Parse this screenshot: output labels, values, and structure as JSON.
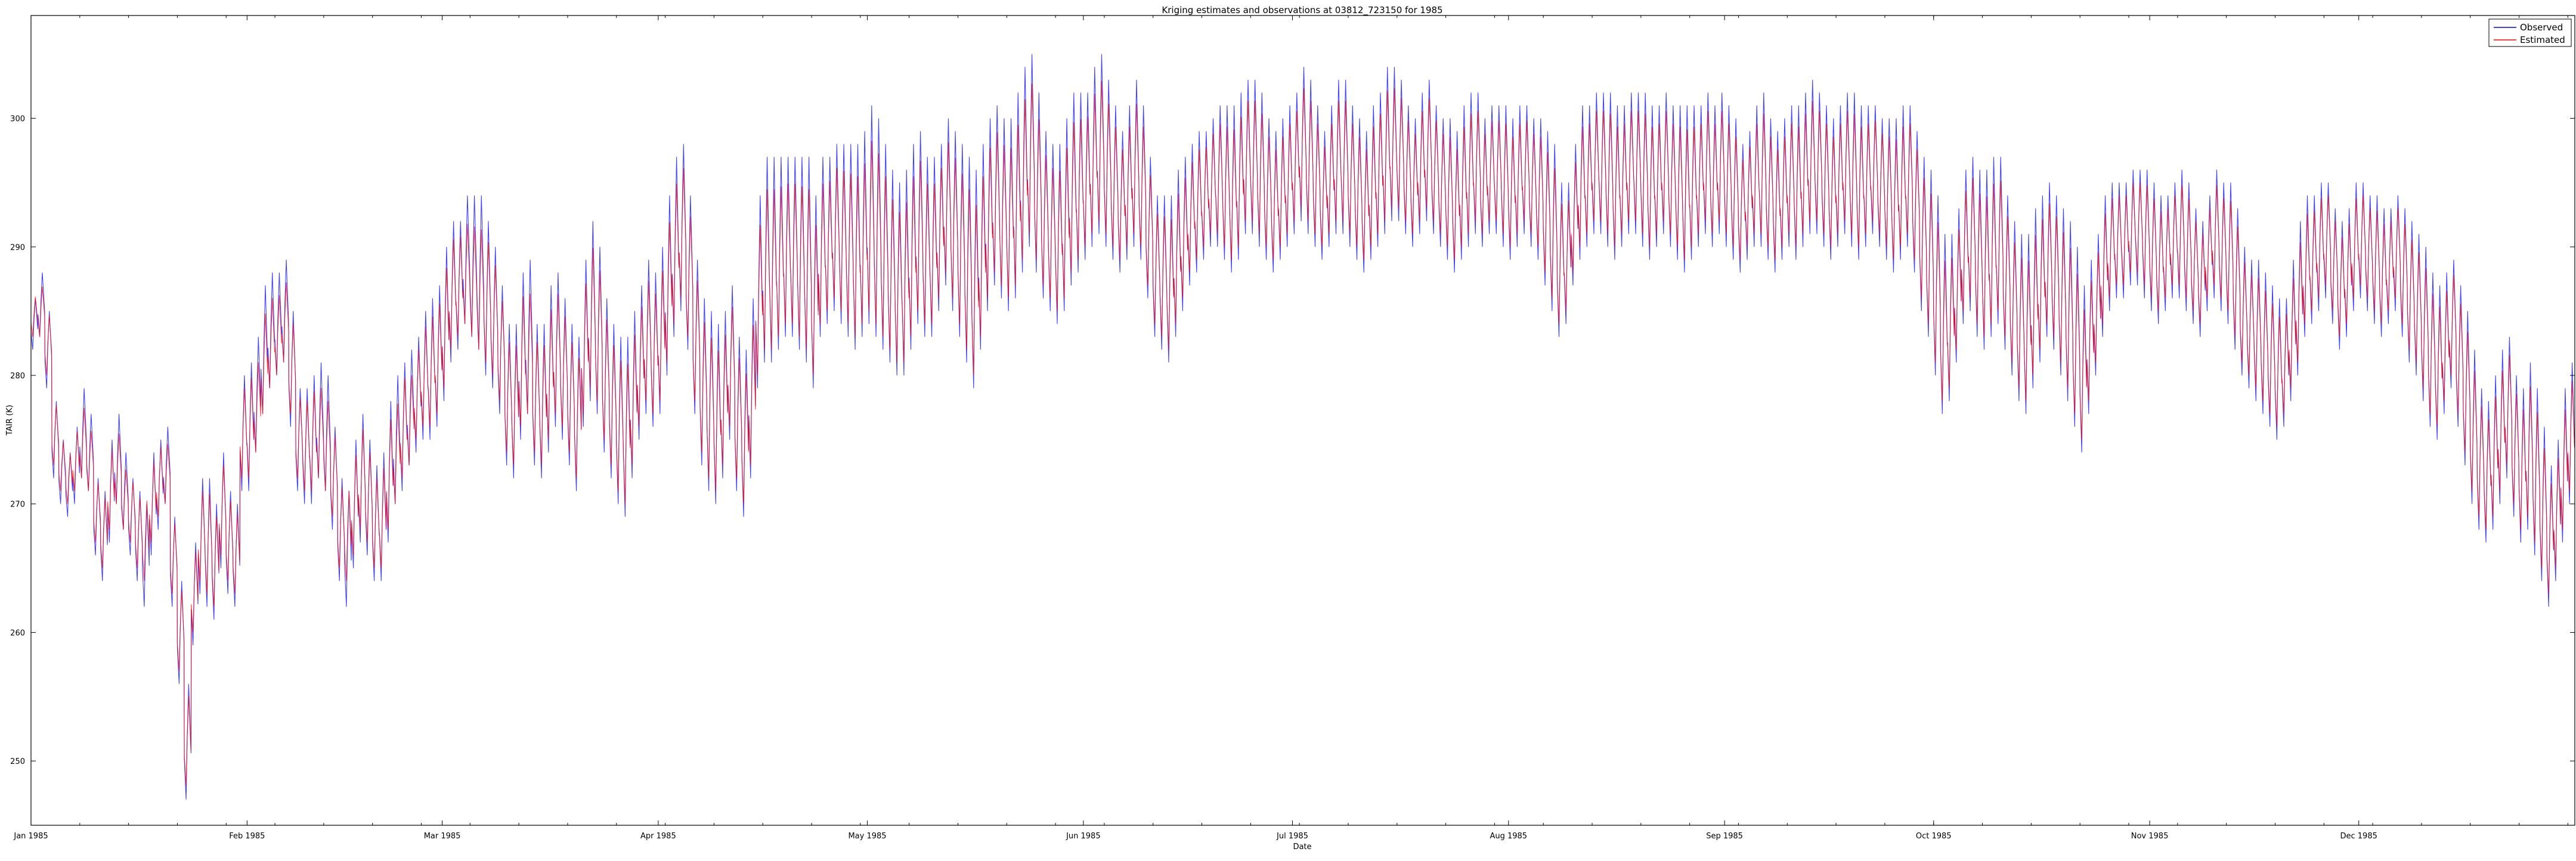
{
  "chart_data": {
    "type": "line",
    "title": "Kriging estimates and observations at 03812_723150 for 1985",
    "xlabel": "Date",
    "ylabel": "TAIR (K)",
    "x_domain": [
      "1985-01-01",
      "1986-01-01"
    ],
    "ylim": [
      245,
      308
    ],
    "x_ticks": [
      {
        "date": "1985-01-01",
        "label": "Jan 1985"
      },
      {
        "date": "1985-02-01",
        "label": "Feb 1985"
      },
      {
        "date": "1985-03-01",
        "label": "Mar 1985"
      },
      {
        "date": "1985-04-01",
        "label": "Apr 1985"
      },
      {
        "date": "1985-05-01",
        "label": "May 1985"
      },
      {
        "date": "1985-06-01",
        "label": "Jun 1985"
      },
      {
        "date": "1985-07-01",
        "label": "Jul 1985"
      },
      {
        "date": "1985-08-01",
        "label": "Aug 1985"
      },
      {
        "date": "1985-09-01",
        "label": "Sep 1985"
      },
      {
        "date": "1985-10-01",
        "label": "Oct 1985"
      },
      {
        "date": "1985-11-01",
        "label": "Nov 1985"
      },
      {
        "date": "1985-12-01",
        "label": "Dec 1985"
      }
    ],
    "y_ticks": [
      250,
      260,
      270,
      280,
      290,
      300
    ],
    "grid": false,
    "legend_position": "top-right",
    "series": [
      {
        "name": "Observed",
        "color": "#0000ff",
        "values_desc": "daily min/max",
        "daily_min": [
          282,
          283,
          279,
          272,
          270,
          269,
          270,
          272,
          271,
          266,
          264,
          267,
          270,
          268,
          266,
          264,
          262,
          266,
          268,
          270,
          262,
          256,
          247,
          259,
          263,
          262,
          261,
          265,
          263,
          262,
          271,
          271,
          274,
          277,
          279,
          280,
          281,
          276,
          271,
          270,
          270,
          272,
          271,
          268,
          264,
          262,
          265,
          267,
          266,
          264,
          264,
          267,
          270,
          271,
          273,
          274,
          275,
          275,
          276,
          278,
          281,
          282,
          284,
          283,
          282,
          280,
          279,
          277,
          273,
          272,
          275,
          277,
          273,
          272,
          274,
          276,
          275,
          273,
          271,
          276,
          278,
          277,
          274,
          272,
          270,
          269,
          272,
          275,
          277,
          276,
          277,
          280,
          283,
          285,
          282,
          277,
          273,
          271,
          270,
          272,
          275,
          271,
          269,
          272,
          279,
          281,
          281,
          282,
          283,
          283,
          282,
          281,
          279,
          283,
          284,
          285,
          284,
          283,
          282,
          283,
          284,
          283,
          282,
          281,
          280,
          280,
          282,
          284,
          283,
          283,
          285,
          287,
          285,
          283,
          281,
          279,
          282,
          285,
          287,
          286,
          285,
          286,
          288,
          290,
          288,
          286,
          285,
          284,
          285,
          287,
          288,
          289,
          290,
          291,
          290,
          289,
          288,
          289,
          290,
          289,
          286,
          283,
          282,
          281,
          283,
          285,
          287,
          288,
          289,
          290,
          290,
          289,
          288,
          289,
          291,
          291,
          290,
          289,
          288,
          289,
          290,
          291,
          292,
          291,
          290,
          289,
          290,
          291,
          291,
          290,
          289,
          288,
          289,
          290,
          291,
          292,
          292,
          291,
          290,
          291,
          292,
          291,
          290,
          289,
          288,
          289,
          290,
          291,
          290,
          291,
          291,
          290,
          289,
          290,
          291,
          290,
          289,
          287,
          285,
          283,
          284,
          287,
          289,
          290,
          291,
          291,
          290,
          289,
          290,
          291,
          291,
          290,
          289,
          290,
          291,
          290,
          289,
          288,
          289,
          290,
          291,
          290,
          291,
          290,
          289,
          288,
          289,
          290,
          290,
          289,
          288,
          289,
          290,
          289,
          290,
          291,
          291,
          290,
          289,
          290,
          291,
          290,
          289,
          290,
          291,
          290,
          289,
          288,
          289,
          290,
          288,
          285,
          283,
          280,
          277,
          278,
          281,
          284,
          285,
          283,
          282,
          283,
          284,
          282,
          280,
          278,
          277,
          279,
          281,
          283,
          282,
          280,
          278,
          276,
          274,
          277,
          280,
          283,
          285,
          286,
          286,
          287,
          287,
          286,
          285,
          284,
          285,
          286,
          286,
          285,
          284,
          283,
          285,
          286,
          285,
          284,
          282,
          280,
          279,
          278,
          277,
          276,
          275,
          276,
          278,
          280,
          283,
          284,
          285,
          286,
          284,
          282,
          283,
          285,
          286,
          285,
          284,
          283,
          284,
          285,
          283,
          281,
          280,
          278,
          276,
          275,
          277,
          279,
          276,
          273,
          270,
          268,
          267,
          268,
          270,
          272,
          269,
          267,
          268,
          266,
          264,
          262,
          264,
          267,
          270,
          272,
          271
        ]
      },
      {
        "name": "Estimated",
        "color": "#ff0000",
        "values_desc": "daily min/max",
        "daily_min": [
          283,
          283,
          280,
          273,
          271,
          270,
          271,
          272,
          271,
          267,
          265,
          268,
          270,
          268,
          267,
          265,
          264,
          267,
          269,
          270,
          263,
          257,
          248,
          260,
          264,
          263,
          262,
          266,
          264,
          263,
          272,
          272,
          274,
          277,
          279,
          280,
          281,
          277,
          272,
          271,
          271,
          272,
          271,
          269,
          265,
          264,
          266,
          268,
          267,
          265,
          265,
          268,
          270,
          272,
          273,
          275,
          276,
          276,
          277,
          279,
          282,
          283,
          284,
          283,
          282,
          281,
          280,
          278,
          274,
          273,
          276,
          277,
          274,
          273,
          275,
          277,
          276,
          274,
          272,
          277,
          279,
          278,
          275,
          273,
          271,
          270,
          273,
          276,
          278,
          277,
          278,
          281,
          284,
          286,
          283,
          278,
          274,
          272,
          271,
          273,
          276,
          272,
          270,
          273,
          280,
          282,
          282,
          283,
          284,
          284,
          283,
          282,
          280,
          284,
          285,
          286,
          285,
          284,
          283,
          284,
          285,
          284,
          283,
          282,
          281,
          281,
          283,
          285,
          284,
          284,
          286,
          288,
          286,
          284,
          282,
          280,
          283,
          286,
          288,
          287,
          286,
          287,
          289,
          291,
          289,
          287,
          286,
          285,
          286,
          288,
          289,
          290,
          291,
          292,
          291,
          290,
          289,
          290,
          291,
          290,
          287,
          284,
          283,
          282,
          284,
          286,
          288,
          289,
          290,
          291,
          291,
          290,
          289,
          290,
          292,
          292,
          291,
          290,
          289,
          290,
          291,
          292,
          293,
          292,
          291,
          290,
          291,
          292,
          292,
          291,
          290,
          289,
          290,
          291,
          292,
          293,
          293,
          292,
          291,
          292,
          293,
          292,
          291,
          290,
          289,
          290,
          291,
          292,
          291,
          292,
          292,
          291,
          290,
          291,
          292,
          291,
          290,
          288,
          286,
          284,
          285,
          288,
          290,
          291,
          292,
          292,
          291,
          290,
          291,
          292,
          292,
          291,
          290,
          291,
          292,
          291,
          290,
          289,
          290,
          291,
          292,
          291,
          292,
          291,
          290,
          289,
          290,
          291,
          291,
          290,
          289,
          290,
          291,
          290,
          291,
          292,
          292,
          291,
          290,
          291,
          292,
          291,
          290,
          291,
          292,
          291,
          290,
          289,
          290,
          291,
          289,
          286,
          284,
          281,
          278,
          279,
          282,
          285,
          286,
          284,
          283,
          284,
          285,
          283,
          281,
          279,
          278,
          280,
          282,
          284,
          283,
          281,
          279,
          277,
          275,
          278,
          281,
          284,
          286,
          287,
          287,
          288,
          288,
          287,
          286,
          285,
          286,
          287,
          287,
          286,
          285,
          284,
          286,
          287,
          286,
          285,
          283,
          281,
          280,
          279,
          278,
          277,
          276,
          277,
          279,
          281,
          284,
          285,
          286,
          287,
          285,
          283,
          284,
          286,
          287,
          286,
          285,
          284,
          285,
          286,
          284,
          282,
          281,
          279,
          277,
          276,
          278,
          280,
          277,
          274,
          271,
          269,
          268,
          269,
          271,
          273,
          270,
          268,
          269,
          267,
          265,
          263,
          265,
          268,
          271,
          273,
          272
        ]
      }
    ],
    "daily_range_obs": [
      4,
      5,
      6,
      6,
      5,
      5,
      6,
      7,
      6,
      6,
      7,
      8,
      7,
      6,
      6,
      7,
      8,
      8,
      7,
      6,
      7,
      8,
      9,
      8,
      9,
      10,
      9,
      9,
      8,
      8,
      9,
      10,
      9,
      10,
      9,
      8,
      8,
      9,
      8,
      9,
      10,
      9,
      9,
      8,
      8,
      9,
      10,
      10,
      9,
      9,
      10,
      11,
      10,
      10,
      9,
      9,
      10,
      11,
      11,
      12,
      11,
      10,
      10,
      11,
      12,
      12,
      11,
      10,
      11,
      12,
      13,
      12,
      11,
      12,
      13,
      12,
      11,
      11,
      12,
      13,
      14,
      13,
      12,
      12,
      13,
      14,
      13,
      12,
      12,
      12,
      13,
      14,
      14,
      13,
      12,
      12,
      13,
      14,
      14,
      13,
      12,
      12,
      13,
      14,
      15,
      16,
      16,
      15,
      14,
      14,
      15,
      16,
      15,
      14,
      13,
      13,
      14,
      15,
      16,
      16,
      17,
      17,
      16,
      15,
      15,
      16,
      16,
      15,
      14,
      14,
      13,
      13,
      14,
      15,
      16,
      17,
      16,
      15,
      14,
      14,
      15,
      16,
      16,
      15,
      14,
      13,
      13,
      14,
      15,
      15,
      14,
      13,
      14,
      14,
      13,
      12,
      11,
      12,
      13,
      12,
      11,
      11,
      12,
      13,
      13,
      12,
      11,
      11,
      10,
      10,
      11,
      12,
      13,
      13,
      12,
      12,
      12,
      11,
      11,
      11,
      11,
      11,
      12,
      12,
      11,
      10,
      11,
      12,
      12,
      11,
      11,
      11,
      12,
      12,
      13,
      12,
      11,
      10,
      10,
      11,
      11,
      10,
      10,
      11,
      11,
      12,
      12,
      11,
      10,
      10,
      10,
      11,
      11,
      11,
      10,
      10,
      11,
      12,
      13,
      12,
      11,
      11,
      12,
      11,
      11,
      11,
      12,
      12,
      11,
      11,
      11,
      12,
      12,
      11,
      11,
      11,
      12,
      13,
      12,
      11,
      11,
      11,
      11,
      11,
      11,
      10,
      10,
      11,
      12,
      11,
      11,
      11,
      11,
      12,
      12,
      12,
      11,
      11,
      11,
      11,
      11,
      12,
      12,
      11,
      10,
      10,
      11,
      12,
      12,
      11,
      11,
      12,
      13,
      14,
      14,
      13,
      12,
      12,
      12,
      13,
      14,
      14,
      13,
      12,
      12,
      13,
      14,
      14,
      13,
      12,
      12,
      13,
      14,
      14,
      13,
      12,
      11,
      11,
      10,
      9,
      9,
      9,
      9,
      10,
      10,
      10,
      9,
      9,
      10,
      10,
      9,
      9,
      9,
      10,
      10,
      11,
      11,
      10,
      10,
      11,
      11,
      11,
      11,
      10,
      11,
      12,
      11,
      10,
      10,
      9,
      9,
      10,
      10,
      10,
      9,
      9,
      10,
      10,
      9,
      9,
      10,
      11,
      11,
      12,
      12,
      12,
      11,
      10,
      11,
      12,
      12,
      11,
      11,
      12,
      12,
      11,
      11,
      12,
      13,
      13,
      12,
      11,
      11,
      12,
      11,
      10,
      9
    ]
  }
}
